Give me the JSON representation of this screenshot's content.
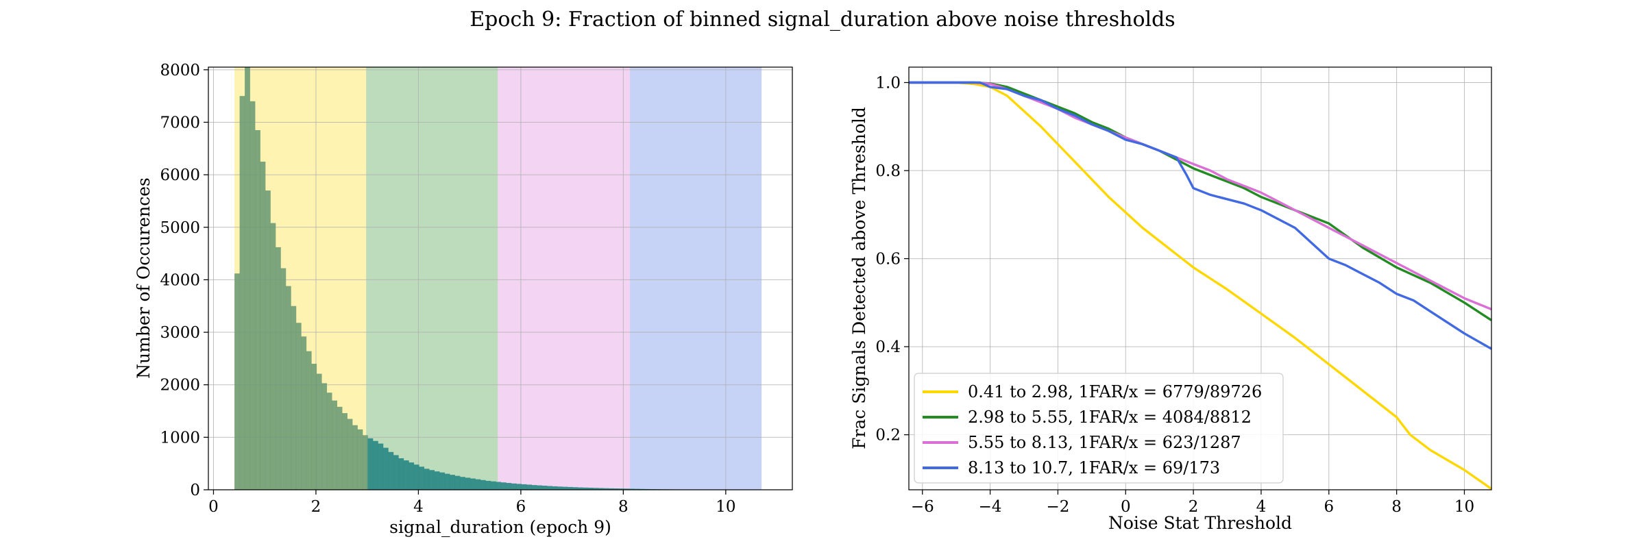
{
  "figure_title": "Epoch 9: Fraction of binned signal_duration above noise thresholds",
  "colors": {
    "bin1": "#ffd700",
    "bin2": "#228b22",
    "bin3": "#da70d6",
    "bin4": "#4169e1",
    "hist_fill": "#6a9a74",
    "hist_fill_bin2": "#2f8a86"
  },
  "chart_data": [
    {
      "type": "bar",
      "subtype": "histogram",
      "title": "",
      "xlabel": "signal_duration (epoch 9)",
      "ylabel": "Number of Occurences",
      "xlim": [
        -0.1,
        11.3
      ],
      "ylim": [
        0,
        8050
      ],
      "xticks": [
        0,
        2,
        4,
        6,
        8,
        10
      ],
      "yticks": [
        0,
        1000,
        2000,
        3000,
        4000,
        5000,
        6000,
        7000,
        8000
      ],
      "grid": true,
      "bands": [
        {
          "from": 0.41,
          "to": 2.98,
          "color": "#ffd700"
        },
        {
          "from": 2.98,
          "to": 5.55,
          "color": "#228b22"
        },
        {
          "from": 5.55,
          "to": 8.13,
          "color": "#da70d6"
        },
        {
          "from": 8.13,
          "to": 10.7,
          "color": "#4169e1"
        }
      ],
      "bin_start": 0.41,
      "bin_width": 0.1,
      "counts": [
        4120,
        7500,
        8050,
        7400,
        6850,
        6250,
        5700,
        5080,
        4620,
        4220,
        3880,
        3500,
        3180,
        2920,
        2640,
        2400,
        2210,
        2030,
        1850,
        1700,
        1580,
        1460,
        1350,
        1230,
        1150,
        1040,
        980,
        930,
        880,
        800,
        720,
        660,
        600,
        560,
        520,
        480,
        440,
        400,
        375,
        350,
        330,
        305,
        285,
        265,
        245,
        230,
        215,
        200,
        185,
        170,
        160,
        150,
        140,
        130,
        120,
        112,
        105,
        98,
        90,
        84,
        78,
        72,
        66,
        61,
        57,
        53,
        49,
        45,
        42,
        39,
        36,
        33,
        30,
        28,
        26,
        24,
        22,
        20,
        18,
        16,
        14,
        12,
        11,
        10,
        9,
        8,
        7,
        6,
        5,
        4,
        3,
        2,
        2,
        1,
        1,
        1,
        1,
        1,
        1,
        1,
        1,
        1,
        1
      ]
    },
    {
      "type": "line",
      "title": "",
      "xlabel": "Noise Stat Threshold",
      "ylabel": "Frac Signals Detected above Threshold",
      "xlim": [
        -6.4,
        10.8
      ],
      "ylim": [
        0.075,
        1.035
      ],
      "xticks": [
        -6,
        -4,
        -2,
        0,
        2,
        4,
        6,
        8,
        10
      ],
      "xtick_labels": [
        "−6",
        "−4",
        "−2",
        "0",
        "2",
        "4",
        "6",
        "8",
        "10"
      ],
      "yticks": [
        0.2,
        0.4,
        0.6,
        0.8,
        1.0
      ],
      "ytick_labels": [
        "0.2",
        "0.4",
        "0.6",
        "0.8",
        "1.0"
      ],
      "grid": true,
      "legend_position": "lower-left",
      "series": [
        {
          "name": "0.41 to 2.98, 1FAR/x = 6779/89726",
          "color": "#ffd700",
          "x": [
            -6.4,
            -5,
            -4.5,
            -4,
            -3.5,
            -3,
            -2.5,
            -2,
            -1.5,
            -1,
            -0.5,
            0,
            0.5,
            1,
            1.5,
            2,
            3,
            4,
            5,
            6,
            7,
            8,
            8.4,
            9,
            10,
            10.8
          ],
          "y": [
            1.0,
            1.0,
            0.997,
            0.99,
            0.97,
            0.935,
            0.9,
            0.86,
            0.82,
            0.78,
            0.74,
            0.705,
            0.67,
            0.64,
            0.61,
            0.58,
            0.53,
            0.475,
            0.42,
            0.36,
            0.3,
            0.24,
            0.2,
            0.165,
            0.12,
            0.077
          ]
        },
        {
          "name": "2.98 to 5.55, 1FAR/x = 4084/8812",
          "color": "#228b22",
          "x": [
            -6.4,
            -5,
            -4.5,
            -4,
            -3.5,
            -3,
            -2.5,
            -2,
            -1.5,
            -1,
            -0.5,
            0,
            0.5,
            1,
            1.5,
            2,
            2.5,
            3,
            3.5,
            4,
            4.5,
            5,
            6,
            7,
            8,
            9,
            10,
            10.8
          ],
          "y": [
            1.0,
            1.0,
            1.0,
            0.998,
            0.99,
            0.975,
            0.96,
            0.945,
            0.93,
            0.91,
            0.895,
            0.875,
            0.86,
            0.845,
            0.825,
            0.805,
            0.79,
            0.775,
            0.76,
            0.74,
            0.725,
            0.71,
            0.68,
            0.625,
            0.58,
            0.545,
            0.5,
            0.46
          ]
        },
        {
          "name": "5.55 to 8.13, 1FAR/x = 623/1287",
          "color": "#da70d6",
          "x": [
            -6.4,
            -5,
            -4.5,
            -4,
            -3.5,
            -3,
            -2.5,
            -2,
            -1.5,
            -1,
            -0.5,
            0,
            0.5,
            1,
            1.5,
            2,
            2.5,
            3,
            3.5,
            4,
            4.5,
            5,
            5.5,
            6,
            7,
            8,
            9,
            10,
            10.8
          ],
          "y": [
            1.0,
            1.0,
            1.0,
            0.997,
            0.985,
            0.97,
            0.955,
            0.94,
            0.92,
            0.905,
            0.89,
            0.875,
            0.86,
            0.845,
            0.83,
            0.815,
            0.8,
            0.78,
            0.765,
            0.75,
            0.73,
            0.71,
            0.69,
            0.67,
            0.63,
            0.59,
            0.55,
            0.51,
            0.485
          ]
        },
        {
          "name": "8.13 to 10.7, 1FAR/x = 69/173",
          "color": "#4169e1",
          "x": [
            -6.4,
            -4.3,
            -4,
            -3.5,
            -3,
            -2.5,
            -2,
            -1.5,
            -1,
            -0.5,
            0,
            0.5,
            1,
            1.5,
            1.8,
            2,
            2.5,
            3,
            3.5,
            4,
            4.5,
            5,
            5.5,
            6,
            6.5,
            7,
            7.5,
            8,
            8.5,
            9,
            10,
            10.8
          ],
          "y": [
            1.0,
            1.0,
            0.99,
            0.985,
            0.97,
            0.96,
            0.94,
            0.925,
            0.905,
            0.89,
            0.87,
            0.86,
            0.845,
            0.83,
            0.79,
            0.76,
            0.745,
            0.735,
            0.725,
            0.71,
            0.69,
            0.67,
            0.635,
            0.6,
            0.585,
            0.565,
            0.545,
            0.52,
            0.505,
            0.48,
            0.43,
            0.395
          ]
        }
      ]
    }
  ]
}
